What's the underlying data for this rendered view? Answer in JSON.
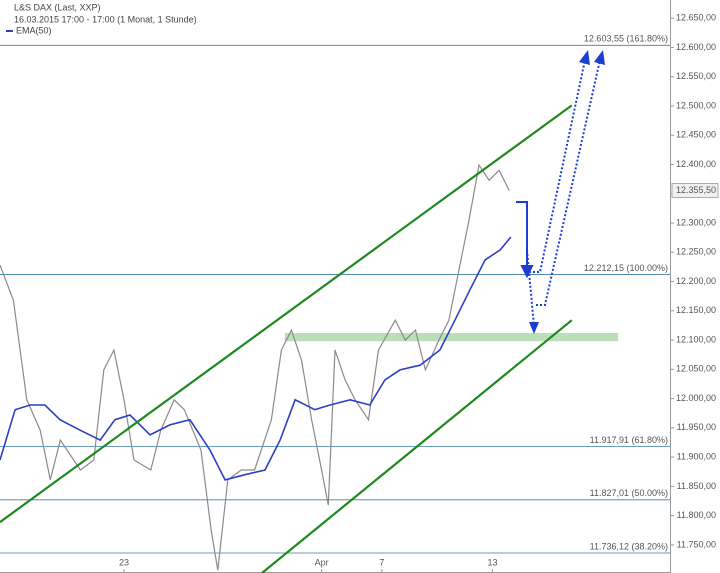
{
  "chart_data": {
    "type": "line",
    "header": {
      "title": "L&S DAX (Last, XXP)",
      "period": "16.03.2015 17:00 - 17:00 (1 Monat, 1 Stunde)",
      "indicator": "EMA(50)"
    },
    "xlim": [
      0,
      200
    ],
    "xticks": [
      {
        "value": 37,
        "label": "23"
      },
      {
        "value": 96,
        "label": "Apr"
      },
      {
        "value": 114,
        "label": "7"
      },
      {
        "value": 147,
        "label": "13"
      }
    ],
    "ylim": [
      11702,
      12681
    ],
    "yticks": [
      {
        "value": 11750,
        "label": "11.750,00"
      },
      {
        "value": 11800,
        "label": "11.800,00"
      },
      {
        "value": 11850,
        "label": "11.850,00"
      },
      {
        "value": 11900,
        "label": "11.900,00"
      },
      {
        "value": 11950,
        "label": "11.950,00"
      },
      {
        "value": 12000,
        "label": "12.000,00"
      },
      {
        "value": 12050,
        "label": "12.050,00"
      },
      {
        "value": 12100,
        "label": "12.100,00"
      },
      {
        "value": 12150,
        "label": "12.150,00"
      },
      {
        "value": 12200,
        "label": "12.200,00"
      },
      {
        "value": 12250,
        "label": "12.250,00"
      },
      {
        "value": 12300,
        "label": "12.300,00"
      },
      {
        "value": 12350,
        "label": "12.350,00"
      },
      {
        "value": 12400,
        "label": "12.400,00"
      },
      {
        "value": 12450,
        "label": "12.450,00"
      },
      {
        "value": 12500,
        "label": "12.500,00"
      },
      {
        "value": 12550,
        "label": "12.550,00"
      },
      {
        "value": 12600,
        "label": "12.600,00"
      },
      {
        "value": 12650,
        "label": "12.650,00"
      }
    ],
    "series": [
      {
        "name": "L&S DAX",
        "color": "#8a8a8a",
        "x": [
          0,
          4,
          8,
          12,
          15,
          18,
          24,
          28,
          31,
          34,
          37,
          40,
          45,
          48,
          52,
          55,
          60,
          63,
          65,
          68,
          72,
          76,
          81,
          84,
          87,
          90,
          93,
          96,
          98,
          100,
          103,
          106,
          110,
          113,
          118,
          121,
          124,
          127,
          131,
          134,
          137,
          140,
          143,
          146,
          149,
          152
        ],
        "values": [
          12228,
          12168,
          11998,
          11946,
          11861,
          11929,
          11878,
          11895,
          12049,
          12083,
          11998,
          11895,
          11878,
          11946,
          11998,
          11981,
          11912,
          11776,
          11707,
          11861,
          11878,
          11878,
          11964,
          12083,
          12117,
          12066,
          11964,
          11878,
          11818,
          12083,
          12032,
          11998,
          11964,
          12083,
          12134,
          12100,
          12117,
          12049,
          12100,
          12134,
          12220,
          12305,
          12399,
          12373,
          12390,
          12355.5
        ]
      },
      {
        "name": "EMA(50)",
        "color": "#2b3fc4",
        "x": [
          0,
          4.5,
          9,
          13.4,
          17.9,
          23.9,
          29.9,
          34.3,
          38.8,
          44.8,
          50.7,
          56.7,
          62.7,
          67.2,
          73.1,
          79.1,
          83.6,
          88.1,
          94,
          98.5,
          104.5,
          110.4,
          114.9,
          119.4,
          125.4,
          131.3,
          135.8,
          140.3,
          144.8,
          149.3,
          152.5
        ],
        "values": [
          11895,
          11981,
          11989,
          11989,
          11964,
          11946,
          11929,
          11964,
          11972,
          11938,
          11955,
          11964,
          11912,
          11861,
          11870,
          11878,
          11929,
          11998,
          11981,
          11989,
          11998,
          11989,
          12032,
          12049,
          12057,
          12083,
          12134,
          12186,
          12237,
          12254,
          12276
        ]
      }
    ],
    "last_price": {
      "value": 12355.5,
      "label": "12.355,50"
    },
    "levels": [
      {
        "value": 12603.55,
        "label": "12.603,55 (161.80%)"
      },
      {
        "value": 12212.15,
        "label": "12.212,15 (100.00%)"
      },
      {
        "value": 11917.91,
        "label": "11.917,91 (61.80%)"
      },
      {
        "value": 11827.01,
        "label": "11.827,01 (50.00%)"
      },
      {
        "value": 11736.12,
        "label": "11.736,12 (38.20%)"
      }
    ],
    "level_color": "#3a7ca8",
    "trendlines": [
      {
        "x": [
          0,
          170.7
        ],
        "values": [
          11789,
          12501
        ]
      },
      {
        "x": [
          78.2,
          170.7
        ],
        "values": [
          11702,
          12134
        ]
      }
    ],
    "trend_color": "#1e8a1e",
    "zone": {
      "x": [
        85,
        184.5
      ],
      "values": [
        12098,
        12112
      ],
      "color": "#a8d8a8"
    }
  }
}
